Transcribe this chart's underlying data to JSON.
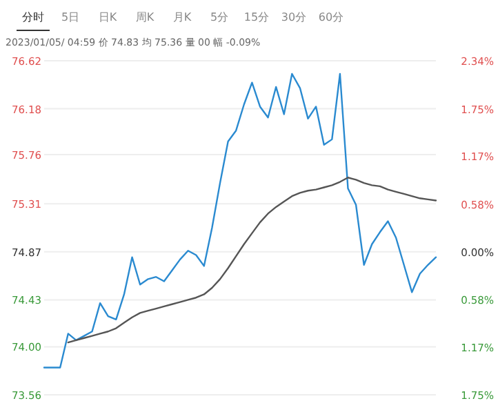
{
  "chart_data": {
    "type": "line",
    "subtitle": "2023/01/05/ 04:59 价 74.83 均 75.36 量 00 幅 -0.09%",
    "annotations": [
      "分时",
      "5日",
      "日K",
      "周K",
      "月K",
      "5分",
      "15分",
      "30分",
      "60分"
    ],
    "categories": [
      null,
      null,
      null,
      null,
      null,
      null,
      null,
      null,
      null,
      null,
      null,
      null,
      null,
      null,
      null,
      null,
      null,
      null,
      null,
      null,
      null,
      null,
      null,
      null,
      null,
      null,
      null,
      null,
      null,
      null,
      null,
      null,
      null,
      null,
      null,
      null,
      null,
      null,
      null,
      null,
      null,
      null,
      null,
      null,
      null,
      null,
      null,
      null,
      null,
      null
    ],
    "ylim": [
      73.56,
      76.62
    ],
    "yticks": [
      76.62,
      76.18,
      75.76,
      75.31,
      74.87,
      74.43,
      {
        "value": 74.0,
        "label": "74.00"
      },
      73.56
    ],
    "y2lim": [
      -1.75,
      2.34
    ],
    "y2ticks": [
      {
        "value": 2.34,
        "label": "2.34%"
      },
      {
        "value": 1.75,
        "label": "1.75%"
      },
      {
        "value": 1.17,
        "label": "1.17%"
      },
      {
        "value": 0.58,
        "label": "0.58%"
      },
      {
        "value": 0,
        "label": "0.00%"
      },
      {
        "value": -0.58,
        "label": "0.58%"
      },
      {
        "value": -1.17,
        "label": "1.17%"
      },
      {
        "value": -1.75,
        "label": "1.75%"
      }
    ],
    "grid": "y",
    "series": [
      {
        "color": "#2a8ad0",
        "values": [
          73.81,
          73.81,
          73.81,
          74.12,
          74.06,
          74.1,
          74.14,
          74.4,
          74.28,
          74.25,
          74.48,
          74.82,
          74.57,
          74.62,
          74.64,
          74.6,
          74.7,
          74.8,
          74.88,
          74.84,
          74.74,
          75.09,
          75.5,
          75.88,
          75.98,
          76.22,
          76.42,
          76.2,
          76.1,
          76.38,
          76.13,
          76.5,
          76.37,
          76.09,
          76.2,
          75.85,
          75.9,
          76.5,
          75.45,
          75.3,
          74.75,
          74.94,
          75.05,
          75.15,
          75.0,
          74.75,
          74.5,
          74.67,
          74.75,
          74.82
        ]
      },
      {
        "color": "#555555",
        "values": [
          null,
          null,
          null,
          74.04,
          74.06,
          74.08,
          74.1,
          74.12,
          74.14,
          74.17,
          74.22,
          74.27,
          74.31,
          74.33,
          74.35,
          74.37,
          74.39,
          74.41,
          74.43,
          74.45,
          74.48,
          74.54,
          74.62,
          74.72,
          74.83,
          74.94,
          75.04,
          75.14,
          75.22,
          75.28,
          75.33,
          75.38,
          75.41,
          75.43,
          75.44,
          75.46,
          75.48,
          75.51,
          75.55,
          75.53,
          75.5,
          75.48,
          75.47,
          75.44,
          75.42,
          75.4,
          75.38,
          75.36,
          75.35,
          75.34
        ]
      }
    ]
  }
}
